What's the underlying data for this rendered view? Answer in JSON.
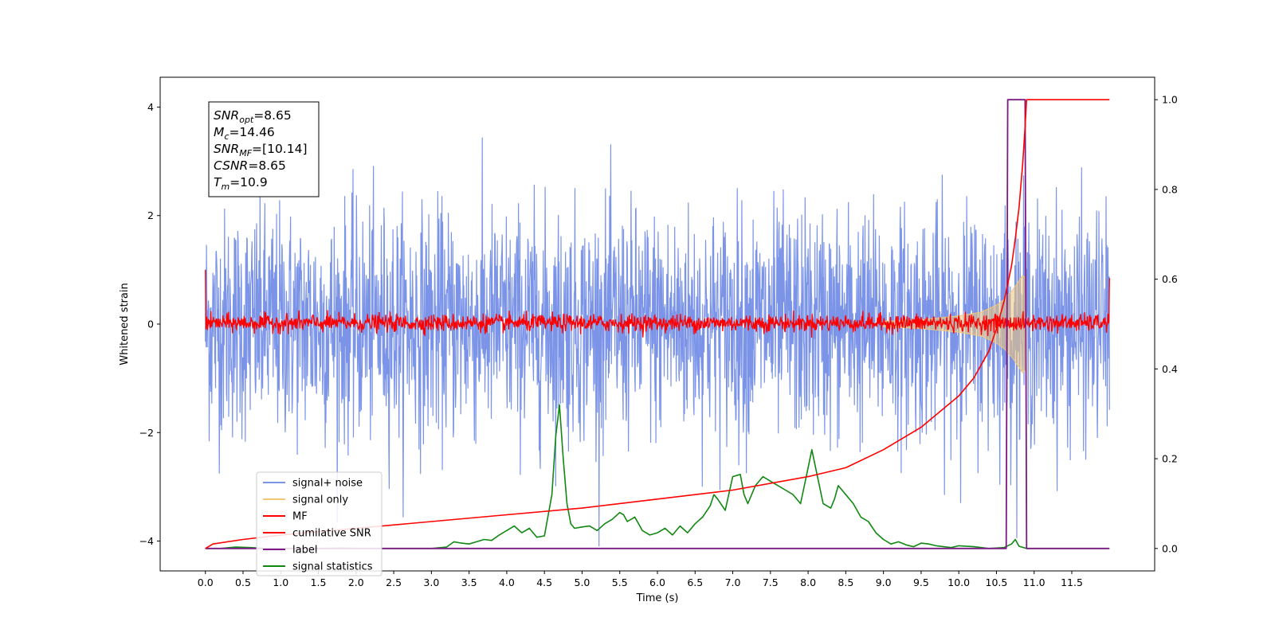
{
  "chart_data": {
    "type": "line",
    "xlabel": "Time (s)",
    "ylabel_left": "Whitened strain",
    "ylabel_right": "",
    "xlim": [
      -0.6,
      12.6
    ],
    "ylim_left": [
      -4.55,
      4.55
    ],
    "ylim_right": [
      -0.05,
      1.05
    ],
    "x_ticks": [
      0.0,
      0.5,
      1.0,
      1.5,
      2.0,
      2.5,
      3.0,
      3.5,
      4.0,
      4.5,
      5.0,
      5.5,
      6.0,
      6.5,
      7.0,
      7.5,
      8.0,
      8.5,
      9.0,
      9.5,
      10.0,
      10.5,
      11.0,
      11.5
    ],
    "x_tick_labels": [
      "0.0",
      "0.5",
      "1.0",
      "1.5",
      "2.0",
      "2.5",
      "3.0",
      "3.5",
      "4.0",
      "4.5",
      "5.0",
      "5.5",
      "6.0",
      "6.5",
      "7.0",
      "7.5",
      "8.0",
      "8.5",
      "9.0",
      "9.5",
      "10.0",
      "10.5",
      "11.0",
      "11.5"
    ],
    "y_ticks_left": [
      -4,
      -2,
      0,
      2,
      4
    ],
    "y_tick_labels_left": [
      "−4",
      "−2",
      "0",
      "2",
      "4"
    ],
    "y_ticks_right": [
      0.0,
      0.2,
      0.4,
      0.6,
      0.8,
      1.0
    ],
    "y_tick_labels_right": [
      "0.0",
      "0.2",
      "0.4",
      "0.6",
      "0.8",
      "1.0"
    ],
    "legend_position": "lower-left",
    "series": [
      {
        "name": "signal+ noise",
        "axis": "left",
        "color": "#7b94e8",
        "description": "dense whitened noise spanning t=0 to 12, amplitude about ±2.5 with peaks to ±4.1",
        "t_start": 0.0,
        "t_end": 12.0
      },
      {
        "name": "signal only",
        "axis": "left",
        "color": "#f4c777",
        "description": "chirp envelope growing toward merger",
        "t": [
          9.0,
          9.5,
          10.0,
          10.3,
          10.5,
          10.6,
          10.7,
          10.8,
          10.85,
          10.88
        ],
        "amplitude": [
          0.05,
          0.08,
          0.15,
          0.22,
          0.35,
          0.45,
          0.6,
          0.8,
          0.9,
          0.85
        ]
      },
      {
        "name": "MF",
        "axis": "left",
        "color": "#ff0000",
        "description": "matched-filter output, mostly noise near 0 with spikes to ±0.35 and edge values near 1.0",
        "t_start": 0.0,
        "t_end": 12.0,
        "start_value": 1.0,
        "end_value": 0.85
      },
      {
        "name": "cumilative SNR",
        "axis": "right",
        "color": "#ff0000",
        "t": [
          0.0,
          0.1,
          0.5,
          1.0,
          2.0,
          3.0,
          4.0,
          5.0,
          6.0,
          7.0,
          8.0,
          8.5,
          9.0,
          9.5,
          10.0,
          10.2,
          10.4,
          10.5,
          10.6,
          10.7,
          10.75,
          10.8,
          10.85,
          10.88,
          10.9,
          12.0
        ],
        "values": [
          0.0,
          0.01,
          0.02,
          0.03,
          0.045,
          0.06,
          0.075,
          0.09,
          0.11,
          0.13,
          0.16,
          0.18,
          0.22,
          0.27,
          0.34,
          0.38,
          0.44,
          0.49,
          0.55,
          0.63,
          0.69,
          0.76,
          0.86,
          0.94,
          1.0,
          1.0
        ]
      },
      {
        "name": "label",
        "axis": "right",
        "color": "#7b1a82",
        "t": [
          0.0,
          10.63,
          10.65,
          10.88,
          10.9,
          12.0
        ],
        "values": [
          0.0,
          0.0,
          1.0,
          1.0,
          0.0,
          0.0
        ]
      },
      {
        "name": "signal statistics",
        "axis": "right",
        "color": "#118811",
        "t": [
          0.0,
          0.2,
          0.4,
          0.6,
          0.8,
          1.0,
          1.2,
          1.4,
          1.6,
          1.8,
          2.0,
          2.2,
          2.4,
          2.6,
          2.8,
          3.0,
          3.2,
          3.3,
          3.4,
          3.5,
          3.6,
          3.7,
          3.8,
          3.9,
          4.0,
          4.1,
          4.2,
          4.3,
          4.4,
          4.5,
          4.6,
          4.65,
          4.7,
          4.75,
          4.8,
          4.85,
          4.9,
          5.0,
          5.1,
          5.2,
          5.3,
          5.4,
          5.5,
          5.55,
          5.6,
          5.7,
          5.8,
          5.9,
          6.0,
          6.1,
          6.2,
          6.3,
          6.4,
          6.5,
          6.6,
          6.7,
          6.75,
          6.8,
          6.9,
          7.0,
          7.1,
          7.15,
          7.2,
          7.3,
          7.4,
          7.5,
          7.6,
          7.7,
          7.8,
          7.9,
          8.0,
          8.05,
          8.1,
          8.2,
          8.3,
          8.35,
          8.4,
          8.5,
          8.6,
          8.7,
          8.8,
          8.9,
          9.0,
          9.1,
          9.2,
          9.3,
          9.4,
          9.5,
          9.6,
          9.7,
          9.8,
          9.9,
          10.0,
          10.2,
          10.4,
          10.6,
          10.7,
          10.75,
          10.8,
          10.9,
          11.0,
          11.5,
          11.95
        ],
        "values": [
          0.0,
          0.0,
          0.003,
          0.002,
          0.0,
          0.0,
          0.0,
          0.0,
          0.0,
          0.001,
          0.0,
          0.0,
          0.0,
          0.0,
          0.0,
          0.0,
          0.003,
          0.015,
          0.012,
          0.01,
          0.015,
          0.02,
          0.018,
          0.03,
          0.04,
          0.05,
          0.035,
          0.045,
          0.025,
          0.028,
          0.12,
          0.25,
          0.32,
          0.2,
          0.1,
          0.055,
          0.045,
          0.048,
          0.05,
          0.04,
          0.055,
          0.065,
          0.08,
          0.075,
          0.06,
          0.07,
          0.04,
          0.03,
          0.035,
          0.045,
          0.03,
          0.05,
          0.035,
          0.055,
          0.07,
          0.095,
          0.12,
          0.11,
          0.085,
          0.16,
          0.165,
          0.12,
          0.1,
          0.14,
          0.16,
          0.15,
          0.14,
          0.13,
          0.12,
          0.1,
          0.18,
          0.22,
          0.18,
          0.1,
          0.09,
          0.11,
          0.14,
          0.12,
          0.1,
          0.07,
          0.06,
          0.035,
          0.02,
          0.01,
          0.015,
          0.008,
          0.004,
          0.012,
          0.01,
          0.006,
          0.004,
          0.002,
          0.006,
          0.004,
          0.0,
          0.002,
          0.01,
          0.02,
          0.005,
          0.0,
          0.0,
          0.0,
          0.0
        ]
      }
    ],
    "annotation": {
      "lines": [
        {
          "base": "SNR",
          "sub": "opt",
          "rest": "=8.65"
        },
        {
          "base": "M",
          "sub": "c",
          "rest": "=14.46"
        },
        {
          "base": "SNR",
          "sub": "MF",
          "rest": "=[10.14]"
        },
        {
          "base": "CSNR",
          "sub": "",
          "rest": "=8.65"
        },
        {
          "base": "T",
          "sub": "m",
          "rest": "=10.9"
        }
      ]
    }
  },
  "legend": {
    "items": [
      {
        "label": "signal+ noise",
        "color": "#7b94e8"
      },
      {
        "label": "signal only",
        "color": "#f4c777"
      },
      {
        "label": "MF",
        "color": "#ff0000"
      },
      {
        "label": "cumilative SNR",
        "color": "#ff0000"
      },
      {
        "label": "label",
        "color": "#7b1a82"
      },
      {
        "label": "signal statistics",
        "color": "#118811"
      }
    ]
  }
}
